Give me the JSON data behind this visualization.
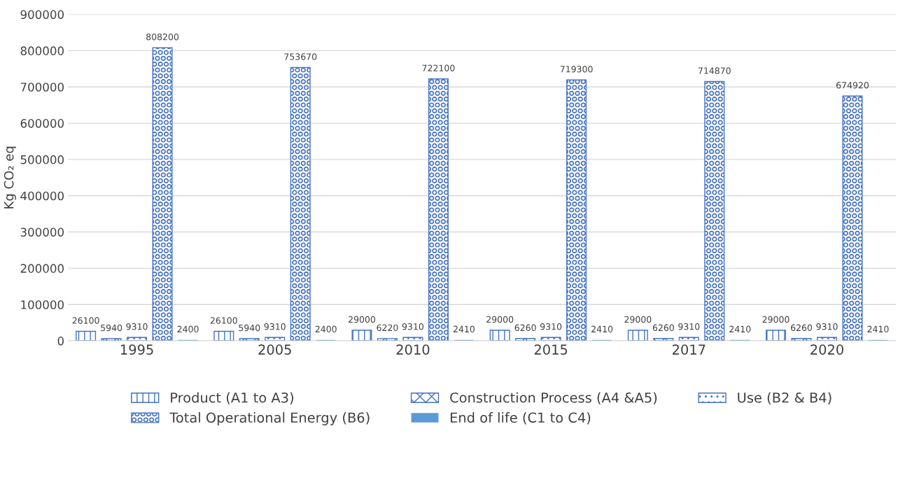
{
  "chart_data": {
    "type": "bar",
    "ylabel": "Kg CO₂ eq",
    "categories": [
      "1995",
      "2005",
      "2010",
      "2015",
      "2017",
      "2020"
    ],
    "series": [
      {
        "name": "Product (A1 to A3)",
        "color": "#4472c4",
        "values": [
          26100,
          26100,
          29000,
          29000,
          29000,
          29000
        ]
      },
      {
        "name": "Construction Process (A4 &A5)",
        "color": "#4472c4",
        "values": [
          5940,
          5940,
          6220,
          6260,
          6260,
          6260
        ]
      },
      {
        "name": "Use (B2 & B4)",
        "color": "#4472c4",
        "values": [
          9310,
          9310,
          9310,
          9310,
          9310,
          9310
        ]
      },
      {
        "name": "Total Operational Energy (B6)",
        "color": "#4472c4",
        "values": [
          808200,
          753670,
          722100,
          719300,
          714870,
          674920
        ]
      },
      {
        "name": "End of life (C1 to C4)",
        "color": "#5b9bd5",
        "values": [
          2400,
          2400,
          2410,
          2410,
          2410,
          2410
        ]
      }
    ],
    "ylim": [
      0,
      900000
    ],
    "yticks": [
      0,
      100000,
      200000,
      300000,
      400000,
      500000,
      600000,
      700000,
      800000,
      900000
    ],
    "grid": "y",
    "legend": "bottom",
    "data_labels": true
  }
}
